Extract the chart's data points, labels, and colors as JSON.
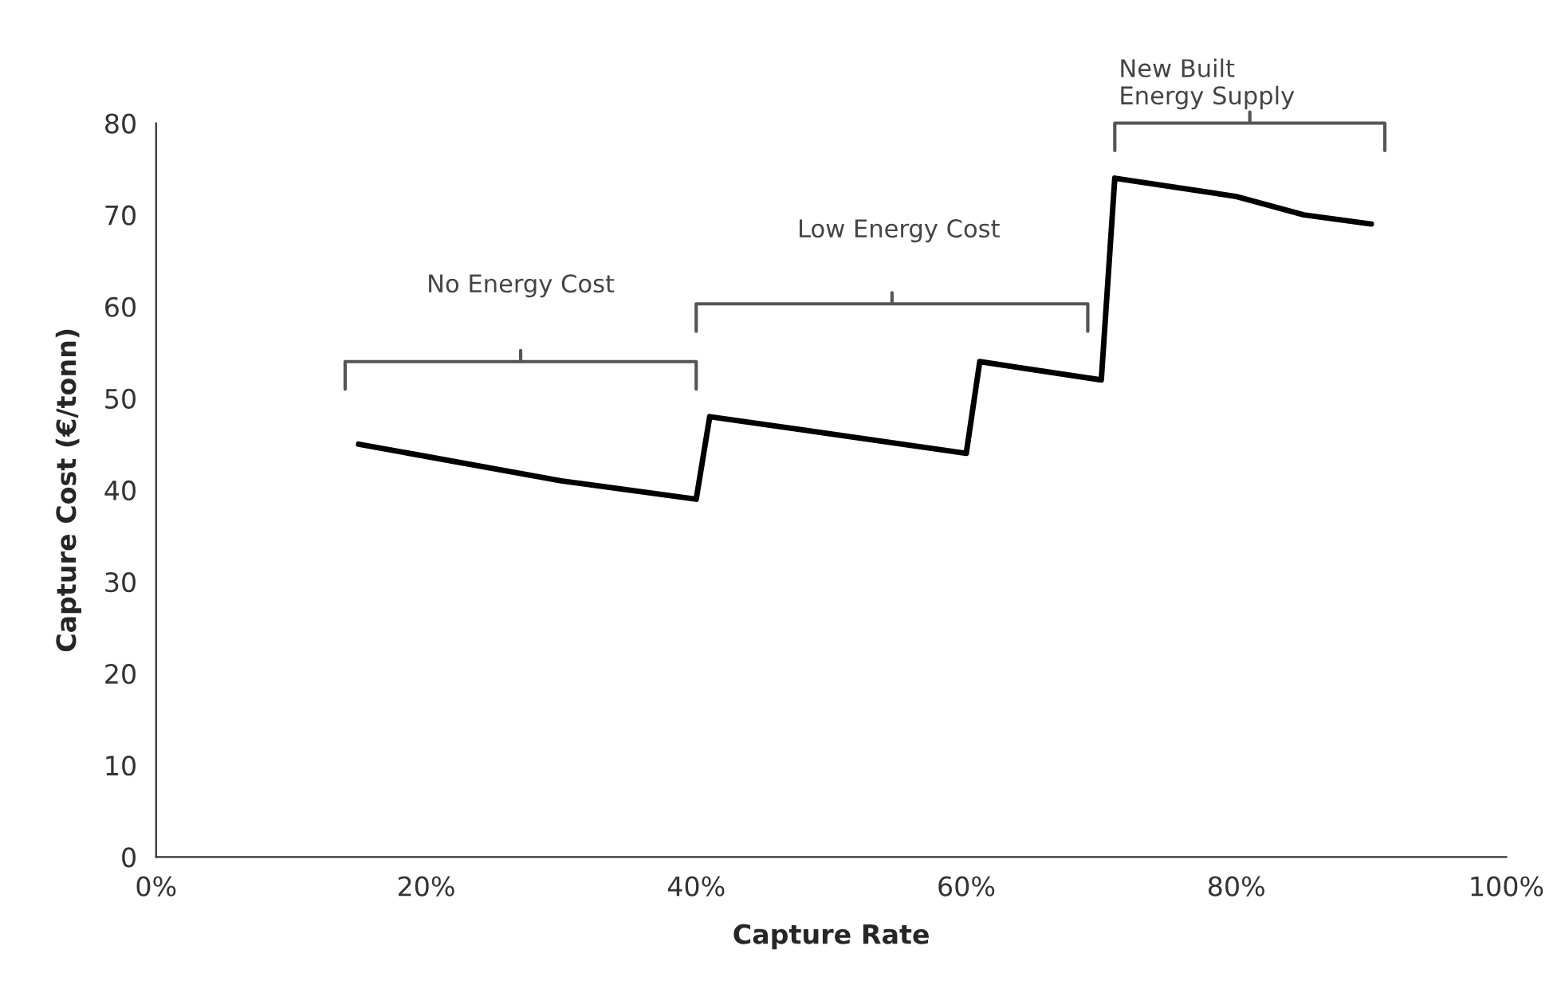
{
  "chart_data": {
    "type": "line",
    "xlabel": "Capture Rate",
    "ylabel": "Capture Cost (€/tonn)",
    "x": [
      15,
      30,
      40,
      41,
      60,
      61,
      70,
      71,
      80,
      85,
      90
    ],
    "series": [
      {
        "color": "#000000",
        "values": [
          45,
          41,
          39,
          48,
          44,
          54,
          52,
          74,
          72,
          70,
          69
        ]
      }
    ],
    "xlim": [
      0,
      100
    ],
    "xticks": [
      {
        "value": 0,
        "label": "0%"
      },
      {
        "value": 20,
        "label": "20%"
      },
      {
        "value": 40,
        "label": "40%"
      },
      {
        "value": 60,
        "label": "60%"
      },
      {
        "value": 80,
        "label": "80%"
      },
      {
        "value": 100,
        "label": "100%"
      }
    ],
    "ylim": [
      0,
      80
    ],
    "yticks": [
      0,
      10,
      20,
      30,
      40,
      50,
      60,
      70,
      80
    ],
    "grid": false,
    "legend": false,
    "marker": "none",
    "line_style": "solid",
    "annotations": [
      "No Energy Cost",
      "Low Energy Cost",
      "New Built\nEnergy Supply"
    ]
  }
}
